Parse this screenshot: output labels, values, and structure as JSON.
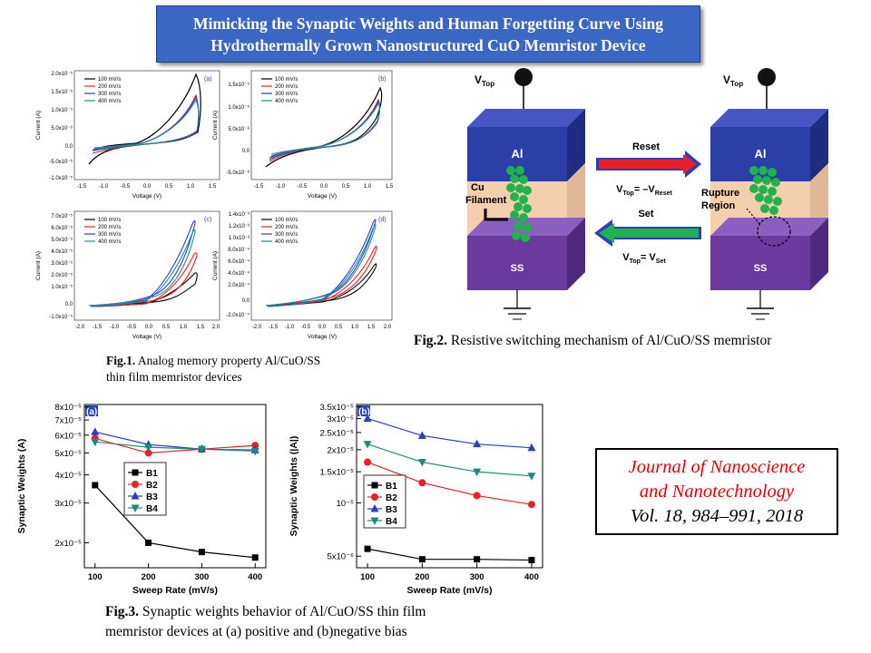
{
  "title": {
    "line1": "Mimicking the Synaptic Weights and Human Forgetting Curve Using",
    "line2": "Hydrothermally Grown Nanostructured CuO Memristor Device"
  },
  "fig1": {
    "caption_label": "Fig.1.",
    "caption_line1": " Analog memory property Al/CuO/SS",
    "caption_line2": "thin film memristor devices",
    "legend": [
      "100 mV/s",
      "200 mV/s",
      "300 mV/s",
      "400 mV/s"
    ],
    "legend_colors": [
      "#000000",
      "#e8202a",
      "#2a3ebf",
      "#1f8a9a"
    ],
    "xlabel": "Voltage (V)",
    "ylabel": "Current (A)",
    "panels": [
      {
        "label": "(a)",
        "xticks": [
          "-1.5",
          "-1.0",
          "-0.5",
          "0.0",
          "0.5",
          "1.0",
          "1.5"
        ],
        "yticks": [
          "2.0x10⁻⁵",
          "1.5x10⁻⁵",
          "1.0x10⁻⁵",
          "5.0x10⁻⁶",
          "0.0",
          "-5.0x10⁻⁶",
          "-1.0x10⁻⁵"
        ]
      },
      {
        "label": "(b)",
        "xticks": [
          "-1.5",
          "-1.0",
          "-0.5",
          "0.0",
          "0.5",
          "1.0",
          "1.5"
        ],
        "yticks": [
          "1.5x10⁻⁵",
          "1.0x10⁻⁵",
          "5.0x10⁻⁶",
          "0.0",
          "-5.0x10⁻⁶"
        ]
      },
      {
        "label": "(c)",
        "xticks": [
          "-2.0",
          "-1.5",
          "-1.0",
          "-0.5",
          "0.0",
          "0.5",
          "1.0",
          "1.5",
          "2.0"
        ],
        "yticks": [
          "7.0x10⁻⁵",
          "6.0x10⁻⁵",
          "5.0x10⁻⁵",
          "4.0x10⁻⁵",
          "3.0x10⁻⁵",
          "2.0x10⁻⁵",
          "1.0x10⁻⁵",
          "0.0",
          "-1.0x10⁻⁵"
        ]
      },
      {
        "label": "(d)",
        "xticks": [
          "-2.0",
          "-1.5",
          "-1.0",
          "-0.5",
          "0.0",
          "0.5",
          "1.0",
          "1.5",
          "2.0"
        ],
        "yticks": [
          "1.4x10⁻³",
          "1.2x10⁻³",
          "1.0x10⁻³",
          "8.0x10⁻⁴",
          "6.0x10⁻⁴",
          "4.0x10⁻⁴",
          "2.0x10⁻⁴",
          "0.0",
          "-2.0x10⁻⁴"
        ]
      }
    ]
  },
  "fig2": {
    "caption_label": "Fig.2.",
    "caption_text": " Resistive switching mechanism of Al/CuO/SS memristor",
    "vtop": "V",
    "vtop_sub": "Top",
    "layer_top": "Al",
    "layer_bottom": "SS",
    "filament_label1": "Cu",
    "filament_label2": "Filament",
    "rupture_label1": "Rupture",
    "rupture_label2": "Region",
    "reset_label": "Reset",
    "set_label": "Set",
    "reset_eq": "= –V",
    "reset_eq_sub": "Reset",
    "set_eq": "= V",
    "set_eq_sub": "Set",
    "colors": {
      "al": "#2b3fa8",
      "cuo": "#f3cfae",
      "ss": "#6a3a9e",
      "dots": "#22b24c",
      "reset_arrow": "#e8202a",
      "set_arrow": "#22b24c"
    }
  },
  "fig3": {
    "caption_label": "Fig.3.",
    "caption_line1": " Synaptic weights behavior of Al/CuO/SS thin film",
    "caption_line2": "memristor devices at (a) positive and (b)negative bias"
  },
  "journal": {
    "line1": "Journal of Nanoscience",
    "line2": "and Nanotechnology",
    "line3": "Vol. 18, 984–991, 2018"
  },
  "chart_data": [
    {
      "type": "line",
      "panel": "(a)",
      "xlabel": "Sweep Rate (mV/s)",
      "ylabel": "Synaptic Weights (A)",
      "yscale": "log",
      "x": [
        100,
        200,
        300,
        400
      ],
      "xticks": [
        "100",
        "200",
        "300",
        "400"
      ],
      "yticks": [
        "8x10⁻⁵",
        "7x10⁻⁵",
        "6x10⁻⁵",
        "5x10⁻⁵",
        "4x10⁻⁵",
        "3x10⁻⁵",
        "2x10⁻⁵"
      ],
      "ylim": [
        1.55e-05,
        8.2e-05
      ],
      "legend_position": "center-right",
      "series": [
        {
          "name": "B1",
          "color": "#000000",
          "marker": "square",
          "values": [
            3.6e-05,
            2e-05,
            1.82e-05,
            1.72e-05
          ]
        },
        {
          "name": "B2",
          "color": "#e8202a",
          "marker": "circle",
          "values": [
            5.8e-05,
            5e-05,
            5.2e-05,
            5.4e-05
          ]
        },
        {
          "name": "B3",
          "color": "#2a3ebf",
          "marker": "triangle-up",
          "values": [
            6.2e-05,
            5.45e-05,
            5.2e-05,
            5.15e-05
          ]
        },
        {
          "name": "B4",
          "color": "#1f8a7a",
          "marker": "triangle-down",
          "values": [
            5.6e-05,
            5.3e-05,
            5.2e-05,
            5.1e-05
          ]
        }
      ]
    },
    {
      "type": "line",
      "panel": "(b)",
      "xlabel": "Sweep Rate (mV/s)",
      "ylabel": "Synaptic Weights (|A|)",
      "yscale": "log",
      "x": [
        100,
        200,
        300,
        400
      ],
      "xticks": [
        "100",
        "200",
        "300",
        "400"
      ],
      "yticks": [
        "3.5x10⁻⁵",
        "3x10⁻⁵",
        "2.5x10⁻⁵",
        "2x10⁻⁵",
        "1.5x10⁻⁵",
        "10⁻⁵",
        "5x10⁻⁶"
      ],
      "ylim": [
        4.3e-06,
        3.6e-05
      ],
      "legend_position": "center-left",
      "series": [
        {
          "name": "B1",
          "color": "#000000",
          "marker": "square",
          "values": [
            5.5e-06,
            4.8e-06,
            4.8e-06,
            4.75e-06
          ]
        },
        {
          "name": "B2",
          "color": "#e8202a",
          "marker": "circle",
          "values": [
            1.7e-05,
            1.3e-05,
            1.1e-05,
            9.8e-06
          ]
        },
        {
          "name": "B3",
          "color": "#2a3ebf",
          "marker": "triangle-up",
          "values": [
            3e-05,
            2.4e-05,
            2.15e-05,
            2.05e-05
          ]
        },
        {
          "name": "B4",
          "color": "#1f8a7a",
          "marker": "triangle-down",
          "values": [
            2.15e-05,
            1.7e-05,
            1.5e-05,
            1.42e-05
          ]
        }
      ]
    }
  ]
}
